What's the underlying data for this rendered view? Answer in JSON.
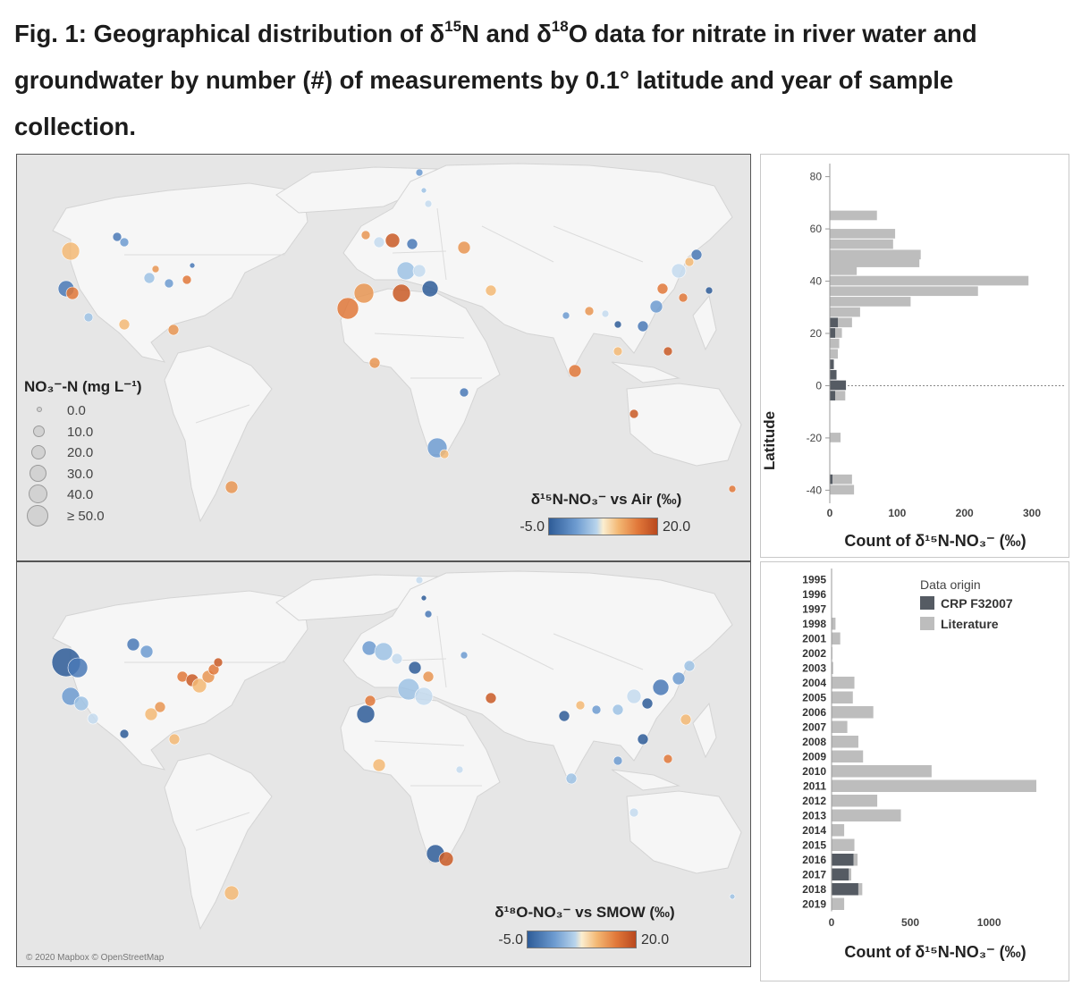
{
  "figure": {
    "title_before": "Fig. 1: Geographical distribution of δ",
    "title_sup1": "15",
    "title_mid": "N and δ",
    "title_sup2": "18",
    "title_after": "O data for nitrate in river water and groundwater by number (#) of measurements by 0.1° latitude and year of sample collection."
  },
  "map_top": {
    "size_legend": {
      "title": "NO₃⁻-N (mg L⁻¹)",
      "items": [
        "0.0",
        "10.0",
        "20.0",
        "30.0",
        "40.0",
        "≥ 50.0"
      ]
    },
    "color_legend": {
      "title": "δ¹⁵N-NO₃⁻ vs Air (‰)",
      "min": "-5.0",
      "max": "20.0"
    }
  },
  "map_bottom": {
    "color_legend": {
      "title": "δ¹⁸O-NO₃⁻ vs SMOW (‰)",
      "min": "-5.0",
      "max": "20.0"
    },
    "credit": "© 2020 Mapbox © OpenStreetMap"
  },
  "colors": {
    "ocean": "#e6e6e6",
    "land": "#f6f6f6",
    "literature_bar": "#bdbdbd",
    "crp_bar": "#555b63",
    "scale_low": "#2e5c98",
    "scale_mid": "#f5ead6",
    "scale_high": "#b9481e"
  },
  "chart_data": [
    {
      "type": "bar",
      "orientation": "horizontal",
      "title": "",
      "xlabel": "Count of δ¹⁵N-NO₃⁻ (‰)",
      "ylabel": "Latitude",
      "xlim": [
        0,
        300
      ],
      "ylim": [
        -45,
        85
      ],
      "x_ticks": [
        0,
        100,
        200,
        300
      ],
      "y_ticks": [
        -40,
        -20,
        0,
        20,
        40,
        60,
        80
      ],
      "zero_line": "dotted",
      "series": [
        {
          "name": "Literature",
          "bins": [
            {
              "lat": 65,
              "value": 70
            },
            {
              "lat": 58,
              "value": 97
            },
            {
              "lat": 54,
              "value": 94
            },
            {
              "lat": 50,
              "value": 135
            },
            {
              "lat": 47,
              "value": 133
            },
            {
              "lat": 44,
              "value": 40
            },
            {
              "lat": 40,
              "value": 295
            },
            {
              "lat": 36,
              "value": 220
            },
            {
              "lat": 32,
              "value": 120
            },
            {
              "lat": 28,
              "value": 45
            },
            {
              "lat": 24,
              "value": 33
            },
            {
              "lat": 20,
              "value": 18
            },
            {
              "lat": 16,
              "value": 14
            },
            {
              "lat": 12,
              "value": 12
            },
            {
              "lat": 8,
              "value": 5
            },
            {
              "lat": 4,
              "value": 3
            },
            {
              "lat": 0,
              "value": 14
            },
            {
              "lat": -4,
              "value": 23
            },
            {
              "lat": -20,
              "value": 16
            },
            {
              "lat": -36,
              "value": 33
            },
            {
              "lat": -40,
              "value": 36
            }
          ]
        },
        {
          "name": "CRP F32007",
          "bins": [
            {
              "lat": 24,
              "value": 12
            },
            {
              "lat": 20,
              "value": 8
            },
            {
              "lat": 8,
              "value": 6
            },
            {
              "lat": 4,
              "value": 10
            },
            {
              "lat": 0,
              "value": 24
            },
            {
              "lat": -4,
              "value": 8
            },
            {
              "lat": -36,
              "value": 4
            }
          ]
        }
      ]
    },
    {
      "type": "bar",
      "orientation": "horizontal",
      "stacked": true,
      "title": "",
      "xlabel": "Count of δ¹⁵N-NO₃⁻ (‰)",
      "ylabel": "",
      "categories": [
        "1995",
        "1996",
        "1997",
        "1998",
        "2001",
        "2002",
        "2003",
        "2004",
        "2005",
        "2006",
        "2007",
        "2008",
        "2009",
        "2010",
        "2011",
        "2012",
        "2013",
        "2014",
        "2015",
        "2016",
        "2017",
        "2018",
        "2019"
      ],
      "xlim": [
        0,
        1300
      ],
      "x_ticks": [
        0,
        500,
        1000
      ],
      "legend_title": "Data origin",
      "legend_position": "top-right",
      "series": [
        {
          "name": "CRP F32007",
          "values": [
            0,
            0,
            0,
            0,
            0,
            0,
            0,
            0,
            0,
            0,
            0,
            0,
            0,
            0,
            0,
            0,
            0,
            0,
            0,
            140,
            110,
            170,
            0
          ]
        },
        {
          "name": "Literature",
          "values": [
            0,
            0,
            0,
            25,
            55,
            5,
            10,
            145,
            135,
            265,
            100,
            170,
            200,
            635,
            1300,
            290,
            440,
            80,
            145,
            25,
            15,
            25,
            80
          ]
        }
      ]
    }
  ]
}
